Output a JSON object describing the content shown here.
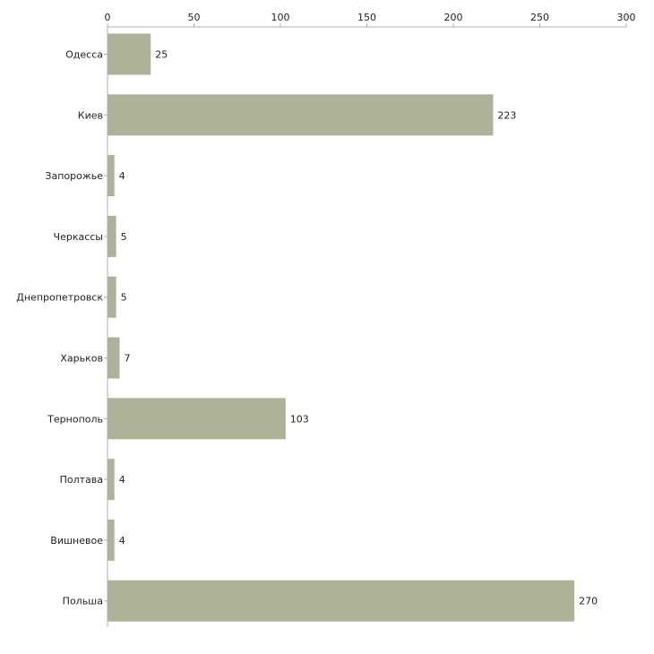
{
  "chart_data": {
    "type": "bar",
    "orientation": "horizontal",
    "categories": [
      "Одесса",
      "Киев",
      "Запорожье",
      "Черкассы",
      "Днепропетровск",
      "Харьков",
      "Тернополь",
      "Полтава",
      "Вишневое",
      "Польша"
    ],
    "values": [
      25,
      223,
      4,
      5,
      5,
      7,
      103,
      4,
      4,
      270
    ],
    "xlim": [
      0,
      300
    ],
    "xticks": [
      0,
      50,
      100,
      150,
      200,
      250,
      300
    ],
    "x_axis_position": "top",
    "grid": false,
    "legend": "none",
    "title": "",
    "xlabel": "",
    "ylabel": ""
  },
  "colors": {
    "bar": "#adb298",
    "axis": "#b0b0b0",
    "text": "#222222"
  }
}
